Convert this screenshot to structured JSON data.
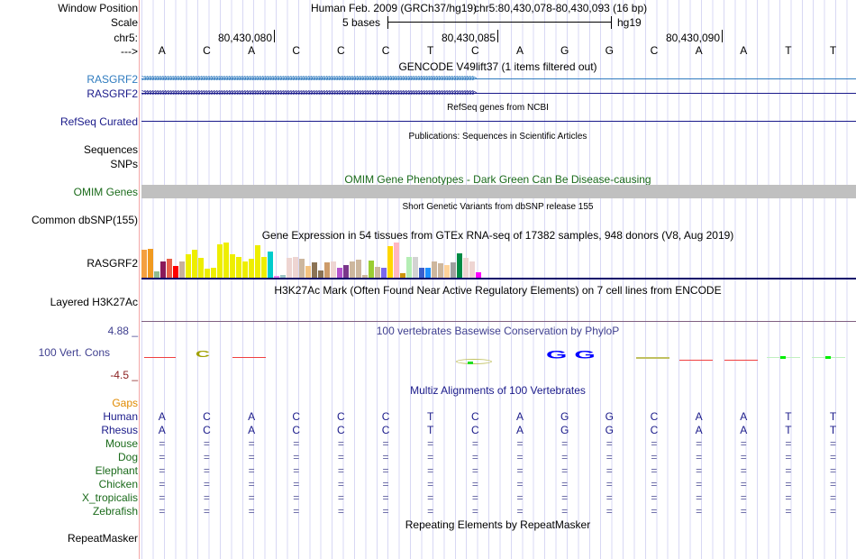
{
  "header": {
    "window_position_label": "Window Position",
    "assembly": "Human Feb. 2009 (GRCh37/hg19)",
    "position": "chr5:80,430,078-80,430,093 (16 bp)",
    "scale_label": "Scale",
    "scale_text": "5 bases",
    "scale_db": "hg19",
    "chrom_label": "chr5:",
    "strand_label": "--->",
    "ticks": [
      "80,430,080",
      "80,430,085",
      "80,430,090"
    ]
  },
  "bases": [
    "A",
    "C",
    "A",
    "C",
    "C",
    "C",
    "T",
    "C",
    "A",
    "G",
    "G",
    "C",
    "A",
    "A",
    "T",
    "T"
  ],
  "tracks": {
    "gencode": {
      "title": "GENCODE V49lift37 (1 items filtered out)",
      "item1": "RASGRF2",
      "item2": "RASGRF2",
      "color1": "#2f7bbf",
      "color2": "#1a1a8a"
    },
    "refseq": {
      "label": "RefSeq Curated",
      "title": "RefSeq genes from NCBI"
    },
    "pubs": {
      "title": "Publications: Sequences in Scientific Articles",
      "label1": "Sequences",
      "label2": "SNPs"
    },
    "omim": {
      "label": "OMIM Genes",
      "title": "OMIM Gene Phenotypes - Dark Green Can Be Disease-causing"
    },
    "dbsnp": {
      "label": "Common dbSNP(155)",
      "title": "Short Genetic Variants from dbSNP release 155"
    },
    "gtex": {
      "label": "RASGRF2",
      "title": "Gene Expression in 54 tissues from GTEx RNA-seq of 17382 samples, 948 donors (V8, Aug 2019)",
      "values": [
        31,
        32,
        7,
        18,
        21,
        13,
        18,
        26,
        31,
        22,
        10,
        11,
        37,
        39,
        26,
        23,
        18,
        21,
        36,
        23,
        29,
        2,
        3,
        22,
        23,
        21,
        13,
        17,
        8,
        17,
        18,
        11,
        14,
        18,
        20,
        3,
        19,
        12,
        11,
        35,
        39,
        5,
        23,
        23,
        11,
        11,
        18,
        16,
        14,
        17,
        27,
        22,
        18,
        6
      ],
      "colors": [
        "#f4a040",
        "#f09a20",
        "#8fbc8f",
        "#8b1a5a",
        "#e8604a",
        "#ff0000",
        "#c8b09a",
        "#eeee00",
        "#eeee00",
        "#eeee00",
        "#eeee00",
        "#eeee00",
        "#eeee00",
        "#eeee00",
        "#eeee00",
        "#eeee00",
        "#eeee00",
        "#eeee00",
        "#eeee00",
        "#eeee00",
        "#00cccc",
        "#ee82ee",
        "#9ec5c5",
        "#eed5d2",
        "#eed5d2",
        "#cdb79e",
        "#f4c27f",
        "#8b7355",
        "#8b7355",
        "#cd9b6a",
        "#eed5d2",
        "#b452cd",
        "#7a378b",
        "#cdb79e",
        "#cdb79e",
        "#cdb79e",
        "#9acd32",
        "#cdb79e",
        "#7b68ee",
        "#ffd700",
        "#ffb6c1",
        "#cd950c",
        "#b4eeb4",
        "#d3d3d3",
        "#3a5fcd",
        "#1e90ff",
        "#cdb79e",
        "#cdb79e",
        "#ffd39b",
        "#a0a0a0",
        "#008b45",
        "#eed5d2",
        "#eed5d2",
        "#ff00ff"
      ]
    },
    "h3k27ac": {
      "label": "Layered H3K27Ac",
      "title": "H3K27Ac Mark (Often Found Near Active Regulatory Elements) on 7 cell lines from ENCODE"
    },
    "phylop": {
      "label": "100 Vert. Cons",
      "title": "100 vertebrates Basewise Conservation by PhyloP",
      "max": "4.88 _",
      "min": "-4.5 _"
    },
    "multiz": {
      "title": "Multiz Alignments of 100 Vertebrates",
      "gaps_label": "Gaps",
      "species": [
        {
          "name": "Human",
          "seq": [
            "A",
            "C",
            "A",
            "C",
            "C",
            "C",
            "T",
            "C",
            "A",
            "G",
            "G",
            "C",
            "A",
            "A",
            "T",
            "T"
          ]
        },
        {
          "name": "Rhesus",
          "seq": [
            "A",
            "C",
            "A",
            "C",
            "C",
            "C",
            "T",
            "C",
            "A",
            "G",
            "G",
            "C",
            "A",
            "A",
            "T",
            "T"
          ]
        },
        {
          "name": "Mouse",
          "seq": "="
        },
        {
          "name": "Dog",
          "seq": "="
        },
        {
          "name": "Elephant",
          "seq": "="
        },
        {
          "name": "Chicken",
          "seq": "="
        },
        {
          "name": "X_tropicalis",
          "seq": "="
        },
        {
          "name": "Zebrafish",
          "seq": "="
        }
      ]
    },
    "repeatmasker": {
      "label": "RepeatMasker",
      "title": "Repeating Elements by RepeatMasker"
    }
  }
}
